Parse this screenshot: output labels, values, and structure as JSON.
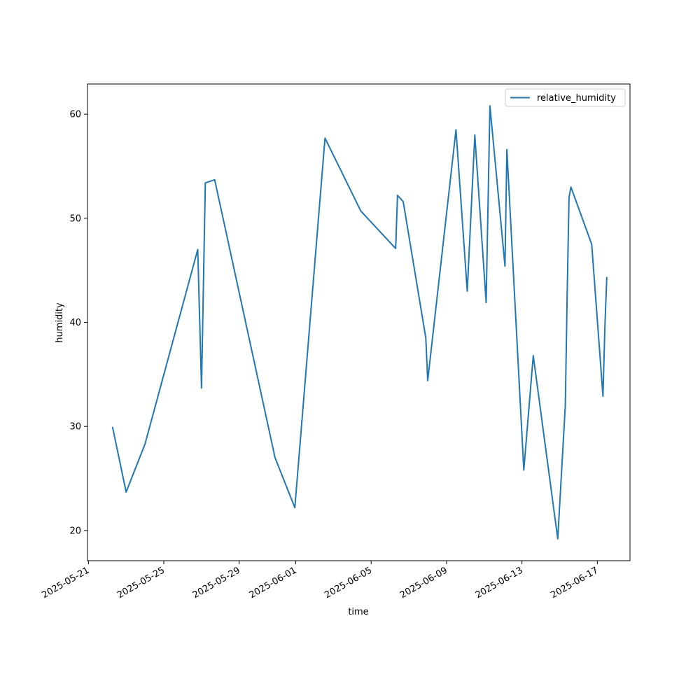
{
  "chart_data": {
    "type": "line",
    "title": "",
    "xlabel": "time",
    "ylabel": "humidity",
    "x_ticks": [
      "2025-05-21",
      "2025-05-25",
      "2025-05-29",
      "2025-06-01",
      "2025-06-05",
      "2025-06-09",
      "2025-06-13",
      "2025-06-17"
    ],
    "y_ticks": [
      20,
      30,
      40,
      50,
      60
    ],
    "xlim": [
      "2025-05-20T22:48",
      "2025-06-18T17:36"
    ],
    "ylim": [
      17.1,
      62.9
    ],
    "grid": false,
    "legend": "top-right",
    "series": [
      {
        "name": "relative_humidity",
        "color": "#1f77b4",
        "points": [
          {
            "x": "2025-05-22T06:48",
            "y": 29.9
          },
          {
            "x": "2025-05-23T00:00",
            "y": 23.7
          },
          {
            "x": "2025-05-24T00:00",
            "y": 28.3
          },
          {
            "x": "2025-05-26T19:12",
            "y": 47.0
          },
          {
            "x": "2025-05-27T00:00",
            "y": 33.7
          },
          {
            "x": "2025-05-27T04:48",
            "y": 53.4
          },
          {
            "x": "2025-05-27T16:48",
            "y": 53.7
          },
          {
            "x": "2025-05-30T21:36",
            "y": 27.0
          },
          {
            "x": "2025-05-31T22:48",
            "y": 22.2
          },
          {
            "x": "2025-06-02T13:12",
            "y": 57.7
          },
          {
            "x": "2025-06-04T10:48",
            "y": 50.7
          },
          {
            "x": "2025-06-06T07:12",
            "y": 47.1
          },
          {
            "x": "2025-06-06T09:36",
            "y": 52.2
          },
          {
            "x": "2025-06-06T16:48",
            "y": 51.6
          },
          {
            "x": "2025-06-07T21:36",
            "y": 38.5
          },
          {
            "x": "2025-06-08T00:00",
            "y": 34.4
          },
          {
            "x": "2025-06-09T12:00",
            "y": 58.5
          },
          {
            "x": "2025-06-10T02:24",
            "y": 43.0
          },
          {
            "x": "2025-06-10T12:00",
            "y": 58.0
          },
          {
            "x": "2025-06-11T02:24",
            "y": 41.9
          },
          {
            "x": "2025-06-11T07:12",
            "y": 60.8
          },
          {
            "x": "2025-06-12T02:24",
            "y": 45.4
          },
          {
            "x": "2025-06-12T04:48",
            "y": 56.6
          },
          {
            "x": "2025-06-13T02:24",
            "y": 25.8
          },
          {
            "x": "2025-06-13T14:24",
            "y": 36.8
          },
          {
            "x": "2025-06-14T21:36",
            "y": 19.2
          },
          {
            "x": "2025-06-15T07:12",
            "y": 32.0
          },
          {
            "x": "2025-06-15T09:36",
            "y": 42.5
          },
          {
            "x": "2025-06-15T12:00",
            "y": 52.0
          },
          {
            "x": "2025-06-15T14:24",
            "y": 53.0
          },
          {
            "x": "2025-06-16T16:48",
            "y": 47.5
          },
          {
            "x": "2025-06-17T07:12",
            "y": 32.9
          },
          {
            "x": "2025-06-17T09:36",
            "y": 39.5
          },
          {
            "x": "2025-06-17T12:00",
            "y": 44.3
          }
        ]
      }
    ]
  }
}
